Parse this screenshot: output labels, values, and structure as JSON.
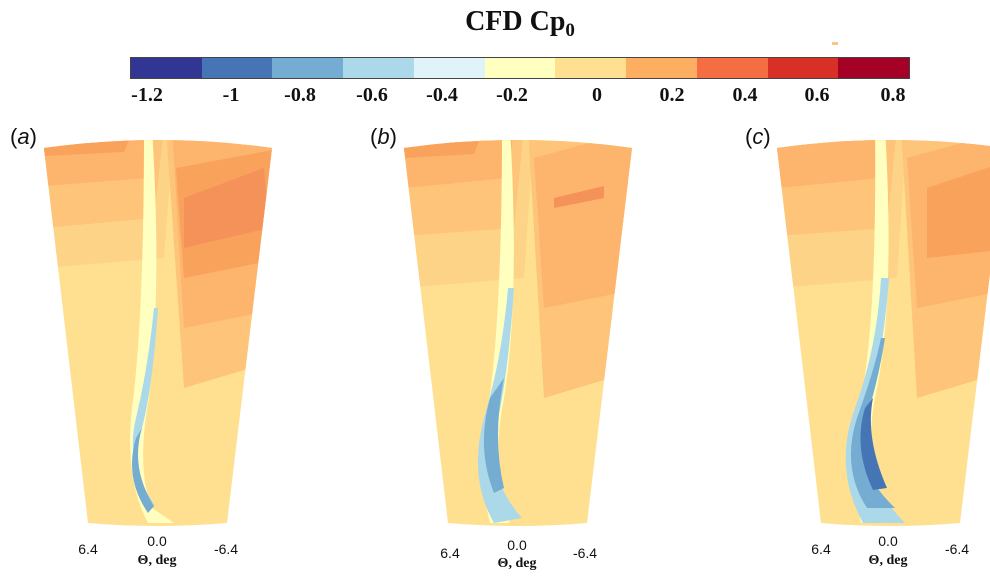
{
  "title": {
    "main": "CFD Cp",
    "sub": "0"
  },
  "colorbar": {
    "colors": [
      "#313695",
      "#4575b4",
      "#74add1",
      "#abd9e9",
      "#e0f3f8",
      "#ffffbf",
      "#fee090",
      "#fdae61",
      "#f46d43",
      "#d73027",
      "#a50026"
    ],
    "ticks": [
      "-1.2",
      "-1",
      "-0.8",
      "-0.6",
      "-0.4",
      "-0.2",
      "0",
      "0.2",
      "0.4",
      "0.6",
      "0.8"
    ]
  },
  "panels": [
    {
      "label": "a",
      "xticks": [
        "6.4",
        "0.0",
        "-6.4"
      ],
      "xlabel": "Θ, deg"
    },
    {
      "label": "b",
      "xticks": [
        "6.4",
        "0.0",
        "-6.4"
      ],
      "xlabel": "Θ, deg"
    },
    {
      "label": "c",
      "xticks": [
        "6.4",
        "0.0",
        "-6.4"
      ],
      "xlabel": "Θ, deg"
    }
  ]
}
